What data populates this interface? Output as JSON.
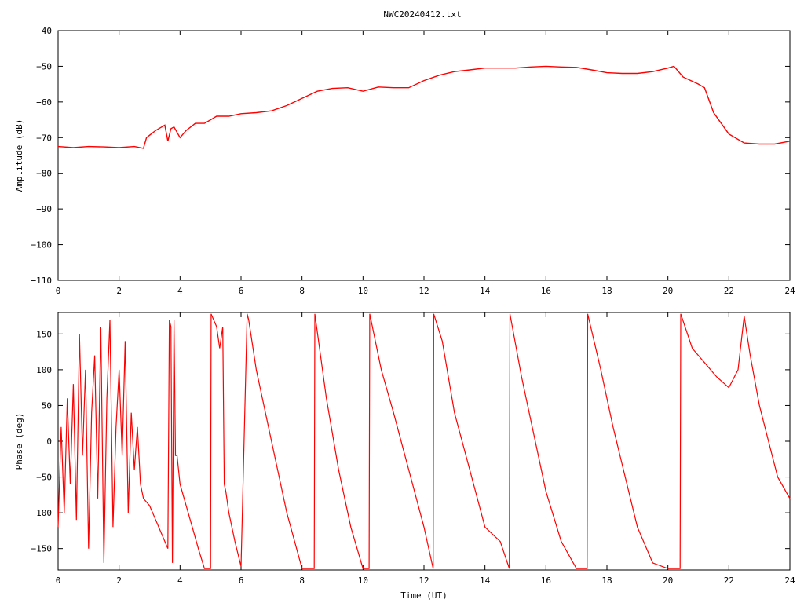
{
  "title": "NWC20240412.txt",
  "colors": {
    "series": "#ff0000",
    "axes": "#000000",
    "background": "#ffffff"
  },
  "chart_data": [
    {
      "type": "line",
      "title": "NWC20240412.txt",
      "xlabel": "",
      "ylabel": "Amplitude (dB)",
      "xlim": [
        0,
        24
      ],
      "ylim": [
        -110,
        -40
      ],
      "xticks": [
        0,
        2,
        4,
        6,
        8,
        10,
        12,
        14,
        16,
        18,
        20,
        22,
        24
      ],
      "yticks": [
        -40,
        -50,
        -60,
        -70,
        -80,
        -90,
        -100,
        -110
      ],
      "grid": false,
      "series": [
        {
          "x": [
            0,
            0.5,
            1,
            1.5,
            2,
            2.5,
            2.8,
            2.9,
            3.2,
            3.4,
            3.5,
            3.6,
            3.7,
            3.8,
            4.0,
            4.2,
            4.5,
            4.8,
            5.0,
            5.2,
            5.4,
            5.6,
            6.0,
            6.5,
            7.0,
            7.5,
            8.0,
            8.5,
            9.0,
            9.5,
            10.0,
            10.5,
            11.0,
            11.5,
            12.0,
            12.5,
            13.0,
            13.5,
            14.0,
            14.5,
            15.0,
            15.5,
            16.0,
            16.5,
            17.0,
            17.5,
            18.0,
            18.5,
            19.0,
            19.5,
            20.0,
            20.2,
            20.5,
            21.0,
            21.2,
            21.5,
            22.0,
            22.5,
            23.0,
            23.5,
            24.0
          ],
          "y": [
            -72.5,
            -72.8,
            -72.5,
            -72.6,
            -72.8,
            -72.5,
            -73,
            -70,
            -68,
            -67,
            -66.5,
            -71,
            -67.5,
            -67,
            -70,
            -68,
            -66,
            -66,
            -65,
            -64,
            -64,
            -64,
            -63.3,
            -63,
            -62.5,
            -61,
            -59,
            -57,
            -56.2,
            -56,
            -57,
            -55.8,
            -56,
            -56,
            -54,
            -52.5,
            -51.5,
            -51,
            -50.5,
            -50.5,
            -50.5,
            -50.2,
            -50,
            -50.2,
            -50.3,
            -51,
            -51.8,
            -52,
            -52,
            -51.5,
            -50.5,
            -50,
            -53,
            -55,
            -56,
            -63,
            -69,
            -71.5,
            -71.8,
            -71.8,
            -71
          ]
        }
      ]
    },
    {
      "type": "line",
      "title": "",
      "xlabel": "Time (UT)",
      "ylabel": "Phase (deg)",
      "xlim": [
        0,
        24
      ],
      "ylim": [
        -180,
        180
      ],
      "xticks": [
        0,
        2,
        4,
        6,
        8,
        10,
        12,
        14,
        16,
        18,
        20,
        22,
        24
      ],
      "yticks": [
        150,
        100,
        50,
        0,
        -50,
        -100,
        -150
      ],
      "grid": false,
      "series": [
        {
          "x": [
            0,
            0.1,
            0.2,
            0.3,
            0.4,
            0.5,
            0.6,
            0.7,
            0.8,
            0.9,
            1.0,
            1.1,
            1.2,
            1.3,
            1.4,
            1.5,
            1.6,
            1.7,
            1.8,
            1.9,
            2.0,
            2.1,
            2.2,
            2.3,
            2.4,
            2.5,
            2.6,
            2.7,
            2.8,
            3.0,
            3.2,
            3.4,
            3.6,
            3.65,
            3.7,
            3.75,
            3.8,
            3.85,
            3.9,
            4.0,
            4.2,
            4.4,
            4.6,
            4.8,
            5.0,
            5.02,
            5.1,
            5.2,
            5.3,
            5.4,
            5.45,
            5.5,
            5.6,
            5.8,
            6.0,
            6.2,
            6.25,
            6.5,
            7.0,
            7.5,
            8.0,
            8.4,
            8.42,
            8.8,
            9.2,
            9.6,
            10.0,
            10.2,
            10.22,
            10.6,
            11.0,
            11.5,
            12.0,
            12.3,
            12.32,
            12.6,
            13.0,
            13.5,
            14.0,
            14.5,
            14.8,
            14.82,
            15.2,
            15.6,
            16.0,
            16.5,
            17.0,
            17.35,
            17.37,
            17.8,
            18.2,
            18.6,
            19.0,
            19.5,
            20.0,
            20.4,
            20.42,
            20.8,
            21.2,
            21.6,
            22.0,
            22.3,
            22.5,
            22.7,
            23.0,
            23.3,
            23.6,
            24.0
          ],
          "y": [
            -120,
            20,
            -100,
            60,
            -60,
            80,
            -110,
            150,
            -20,
            100,
            -150,
            40,
            120,
            -80,
            160,
            -170,
            60,
            170,
            -120,
            20,
            100,
            -20,
            140,
            -100,
            40,
            -40,
            20,
            -60,
            -80,
            -90,
            -110,
            -130,
            -150,
            170,
            160,
            -170,
            170,
            -20,
            -20,
            -60,
            -90,
            -120,
            -150,
            -178,
            -178,
            178,
            170,
            160,
            130,
            160,
            -60,
            -70,
            -100,
            -140,
            -175,
            178,
            170,
            100,
            0,
            -100,
            -178,
            -178,
            178,
            60,
            -40,
            -120,
            -178,
            -178,
            178,
            100,
            40,
            -40,
            -120,
            -178,
            178,
            140,
            40,
            -40,
            -120,
            -140,
            -178,
            178,
            90,
            10,
            -70,
            -140,
            -178,
            -178,
            178,
            100,
            20,
            -50,
            -120,
            -170,
            -178,
            -178,
            178,
            130,
            110,
            90,
            75,
            100,
            175,
            120,
            50,
            0,
            -50,
            -80
          ]
        }
      ]
    }
  ]
}
